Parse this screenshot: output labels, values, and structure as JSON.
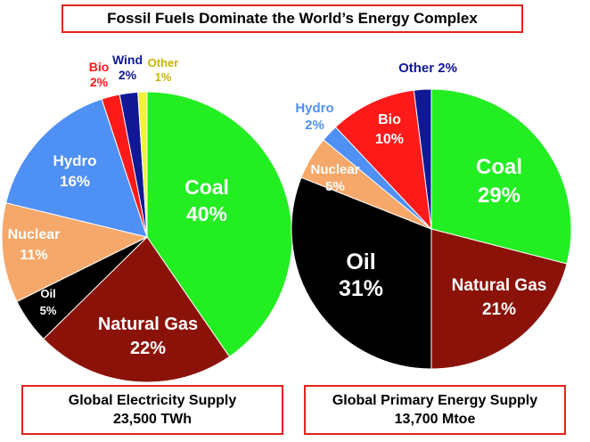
{
  "title": "Fossil Fuels Dominate the World’s Energy Complex",
  "chart_data": [
    {
      "type": "pie",
      "caption": [
        "Global Electricity Supply",
        "23,500 TWh"
      ],
      "slices": [
        {
          "label": "Coal",
          "value": 40,
          "pct": "40%",
          "color": "#22ee22",
          "text_color": "#ffffff"
        },
        {
          "label": "Natural Gas",
          "value": 22,
          "pct": "22%",
          "color": "#8b1208",
          "text_color": "#ffffff"
        },
        {
          "label": "Oil",
          "value": 5,
          "pct": "5%",
          "color": "#000000",
          "text_color": "#ffffff"
        },
        {
          "label": "Nuclear",
          "value": 11,
          "pct": "11%",
          "color": "#f6a86a",
          "text_color": "#ffffff"
        },
        {
          "label": "Hydro",
          "value": 16,
          "pct": "16%",
          "color": "#4f90f5",
          "text_color": "#ffffff"
        },
        {
          "label": "Bio",
          "value": 2,
          "pct": "2%",
          "color": "#ff1a1a",
          "text_color": "#ff1a1a"
        },
        {
          "label": "Wind",
          "value": 2,
          "pct": "2%",
          "color": "#101896",
          "text_color": "#101896"
        },
        {
          "label": "Other",
          "value": 1,
          "pct": "1%",
          "color": "#f5f03a",
          "text_color": "#c9b400"
        }
      ]
    },
    {
      "type": "pie",
      "caption": [
        "Global Primary Energy Supply",
        "13,700 Mtoe"
      ],
      "slices": [
        {
          "label": "Coal",
          "value": 29,
          "pct": "29%",
          "color": "#22ee22",
          "text_color": "#ffffff"
        },
        {
          "label": "Natural Gas",
          "value": 21,
          "pct": "21%",
          "color": "#8b1208",
          "text_color": "#ffffff"
        },
        {
          "label": "Oil",
          "value": 31,
          "pct": "31%",
          "color": "#000000",
          "text_color": "#ffffff"
        },
        {
          "label": "Nuclear",
          "value": 5,
          "pct": "5%",
          "color": "#f6a86a",
          "text_color": "#ffffff"
        },
        {
          "label": "Hydro",
          "value": 2,
          "pct": "2%",
          "color": "#4f90f5",
          "text_color": "#4f90f5"
        },
        {
          "label": "Bio",
          "value": 10,
          "pct": "10%",
          "color": "#ff1a1a",
          "text_color": "#ffffff"
        },
        {
          "label": "Other",
          "value": 2,
          "pct": "2%",
          "color": "#101896",
          "text_color": "#101896"
        }
      ]
    }
  ]
}
